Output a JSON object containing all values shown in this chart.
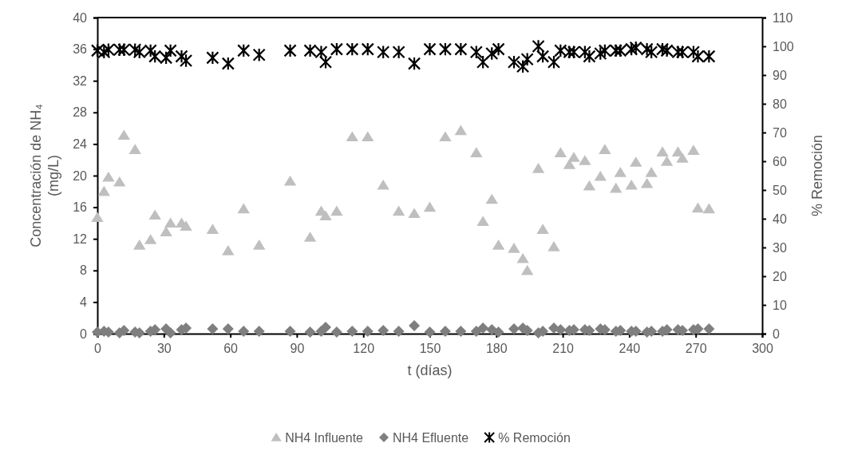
{
  "chart_data": {
    "type": "scatter",
    "xlabel": "t (días)",
    "ylabel": "Concentración de NH₄ (mg/L)",
    "y2label": "% Remoción",
    "x": [
      0,
      3,
      5,
      10,
      12,
      17,
      19,
      24,
      26,
      31,
      33,
      38,
      40,
      52,
      59,
      66,
      73,
      87,
      96,
      101,
      103,
      108,
      115,
      122,
      129,
      136,
      143,
      150,
      157,
      164,
      171,
      174,
      178,
      181,
      188,
      192,
      194,
      199,
      201,
      206,
      209,
      213,
      215,
      220,
      222,
      227,
      229,
      234,
      236,
      241,
      243,
      248,
      250,
      255,
      257,
      262,
      264,
      269,
      271,
      276
    ],
    "xlim": [
      0,
      300
    ],
    "xticks": [
      0,
      30,
      60,
      90,
      120,
      150,
      180,
      210,
      240,
      270,
      300
    ],
    "ylim": [
      0,
      40
    ],
    "yticks": [
      0,
      4,
      8,
      12,
      16,
      20,
      24,
      28,
      32,
      36,
      40
    ],
    "y2lim": [
      0,
      110
    ],
    "y2ticks": [
      0,
      10,
      20,
      30,
      40,
      50,
      60,
      70,
      80,
      90,
      100,
      110
    ],
    "grid": false,
    "legend": "bottom",
    "series": [
      {
        "name": "NH4 Influente",
        "color": "#bfbfbf",
        "marker": "triangle",
        "values": [
          14.7,
          18.0,
          19.8,
          19.2,
          25.1,
          23.3,
          11.2,
          11.9,
          15.0,
          12.9,
          14.0,
          14.0,
          13.6,
          13.2,
          10.5,
          15.8,
          11.2,
          19.3,
          12.2,
          15.5,
          14.9,
          15.5,
          24.9,
          24.9,
          18.8,
          15.5,
          15.2,
          16.0,
          24.9,
          25.7,
          22.9,
          14.2,
          17.0,
          11.2,
          10.8,
          9.5,
          8.0,
          20.9,
          13.2,
          11.0,
          22.9,
          21.4,
          22.3,
          21.9,
          18.7,
          19.9,
          23.3,
          18.4,
          20.4,
          18.8,
          21.7,
          19.0,
          20.4,
          23.0,
          21.8,
          23.0,
          22.2,
          23.2,
          15.9,
          15.8
        ]
      },
      {
        "name": "NH4 Efluente",
        "color": "#7f7f7f",
        "marker": "diamond",
        "values": [
          0.2,
          0.3,
          0.2,
          0.1,
          0.4,
          0.2,
          0.1,
          0.3,
          0.5,
          0.6,
          0.1,
          0.5,
          0.7,
          0.6,
          0.6,
          0.3,
          0.3,
          0.3,
          0.2,
          0.3,
          0.8,
          0.2,
          0.3,
          0.3,
          0.4,
          0.3,
          1.0,
          0.2,
          0.3,
          0.3,
          0.3,
          0.7,
          0.5,
          0.2,
          0.6,
          0.7,
          0.4,
          0.1,
          0.3,
          0.7,
          0.5,
          0.4,
          0.5,
          0.5,
          0.4,
          0.6,
          0.5,
          0.3,
          0.4,
          0.3,
          0.3,
          0.2,
          0.3,
          0.3,
          0.5,
          0.5,
          0.4,
          0.5,
          0.6,
          0.6
        ]
      },
      {
        "name": "% Remoción",
        "color": "#000000",
        "marker": "cross",
        "axis": "y2",
        "values": [
          98.5,
          98,
          98.8,
          98.8,
          98.8,
          98.8,
          98,
          98.5,
          96.5,
          96,
          98.5,
          96.5,
          95,
          96,
          94,
          98.5,
          97,
          98.5,
          98.5,
          98,
          94.5,
          99,
          99,
          99,
          98,
          98,
          94,
          99,
          99,
          99,
          98,
          94.5,
          97.5,
          99,
          94.5,
          93,
          95.5,
          100,
          96.5,
          94.5,
          98.5,
          98,
          98,
          98,
          96.5,
          97.5,
          98.5,
          98.5,
          98.5,
          99,
          99.5,
          99,
          98,
          99,
          98.5,
          98,
          98,
          98,
          96.5,
          96.5
        ]
      }
    ]
  }
}
